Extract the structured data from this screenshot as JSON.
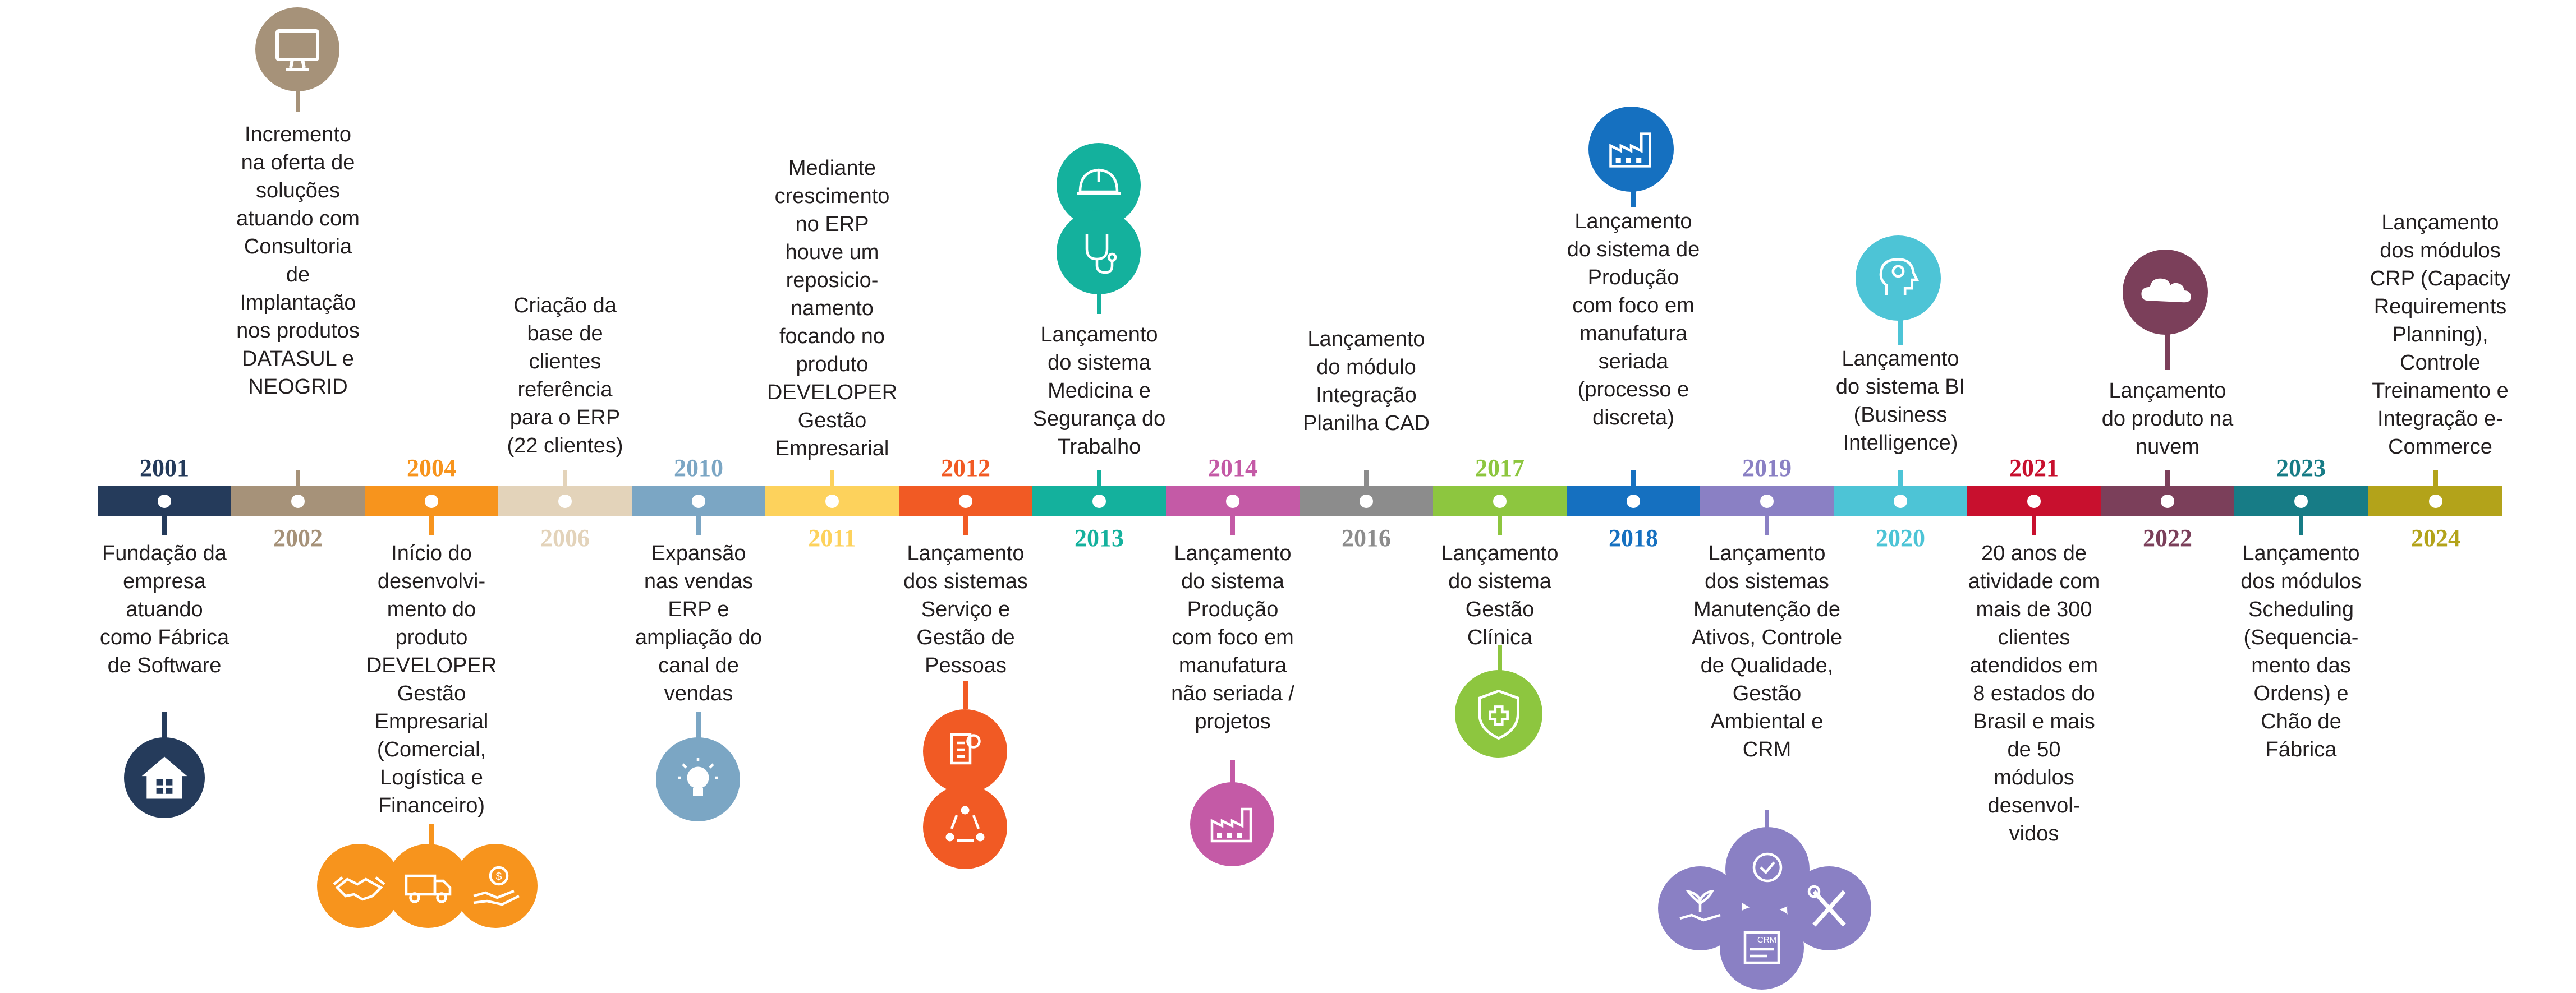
{
  "milestones": [
    {
      "year": "2001",
      "color": "#253b5b",
      "year_pos": "top",
      "text": "Fundação da empresa atuando como Fábrica de Software",
      "icons": [
        "house-icon"
      ]
    },
    {
      "year": "2002",
      "color": "#a69279",
      "year_pos": "bottom",
      "text": "Incremento na oferta de soluções atuando com Consultoria de Implantação nos produtos DATASUL e NEOGRID",
      "icons": [
        "monitor-icon"
      ]
    },
    {
      "year": "2004",
      "color": "#f7941d",
      "year_pos": "top",
      "text": "Início do desenvolvi-mento do produto DEVELOPER Gestão Empresarial (Comercial, Logística e Financeiro)",
      "icons": [
        "handshake-icon",
        "truck-icon",
        "money-hand-icon"
      ]
    },
    {
      "year": "2006",
      "color": "#e3d3ba",
      "year_pos": "bottom",
      "text": "Criação da base de clientes referência para o ERP (22 clientes)",
      "icons": []
    },
    {
      "year": "2010",
      "color": "#7ba6c4",
      "year_pos": "top",
      "text": "Expansão nas vendas ERP e ampliação do canal de vendas",
      "icons": [
        "lightbulb-icon"
      ]
    },
    {
      "year": "2011",
      "color": "#fdd25c",
      "year_pos": "bottom",
      "text": "Mediante crescimento no ERP houve um reposicio-namento focando no produto DEVELOPER Gestão Empresarial",
      "icons": []
    },
    {
      "year": "2012",
      "color": "#f15a24",
      "year_pos": "top",
      "text": "Lançamento dos sistemas Serviço e Gestão de Pessoas",
      "icons": [
        "service-tools-icon",
        "people-cycle-icon"
      ]
    },
    {
      "year": "2013",
      "color": "#14b19d",
      "year_pos": "bottom",
      "text": "Lançamento do sistema Medicina e Segurança do Trabalho",
      "icons": [
        "hard-hat-icon",
        "stethoscope-icon"
      ]
    },
    {
      "year": "2014",
      "color": "#c45aa6",
      "year_pos": "top",
      "text": "Lançamento do sistema Produção com foco em manufatura não seriada / projetos",
      "icons": [
        "factory-icon"
      ]
    },
    {
      "year": "2016",
      "color": "#8c8c8c",
      "year_pos": "bottom",
      "text": "Lançamento do módulo Integração Planilha CAD",
      "icons": []
    },
    {
      "year": "2017",
      "color": "#8dc63f",
      "year_pos": "top",
      "text": "Lançamento do sistema Gestão Clínica",
      "icons": [
        "shield-cross-icon"
      ]
    },
    {
      "year": "2018",
      "color": "#1570c0",
      "year_pos": "bottom",
      "text": "Lançamento do sistema de Produção com foco em manufatura seriada (processo e discreta)",
      "icons": [
        "factory-icon"
      ]
    },
    {
      "year": "2019",
      "color": "#8a80c4",
      "year_pos": "top",
      "text": "Lançamento dos sistemas Manutenção de Ativos, Controle de Qualidade, Gestão Ambiental e CRM",
      "icons": [
        "quality-badge-icon",
        "plant-hand-icon",
        "wrench-screwdriver-icon",
        "crm-icon"
      ]
    },
    {
      "year": "2020",
      "color": "#4dc4d6",
      "year_pos": "bottom",
      "text": "Lançamento do sistema BI (Business Intelligence)",
      "icons": [
        "head-gear-icon"
      ]
    },
    {
      "year": "2021",
      "color": "#c8102e",
      "year_pos": "top",
      "text": "20 anos de atividade com mais de 300 clientes atendidos em 8 estados do Brasil e mais de 50 módulos desenvol-vidos",
      "icons": []
    },
    {
      "year": "2022",
      "color": "#7b3f5a",
      "year_pos": "bottom",
      "text": "Lançamento do produto na nuvem",
      "icons": [
        "cloud-icon"
      ]
    },
    {
      "year": "2023",
      "color": "#177c86",
      "year_pos": "top",
      "text": "Lançamento dos módulos Scheduling (Sequencia-mento das Ordens) e Chão de Fábrica",
      "icons": []
    },
    {
      "year": "2024",
      "color": "#b3a31a",
      "year_pos": "bottom",
      "text": "Lançamento dos módulos CRP (Capacity Requirements Planning), Controle Treinamento e Integração e-Commerce",
      "icons": []
    }
  ]
}
